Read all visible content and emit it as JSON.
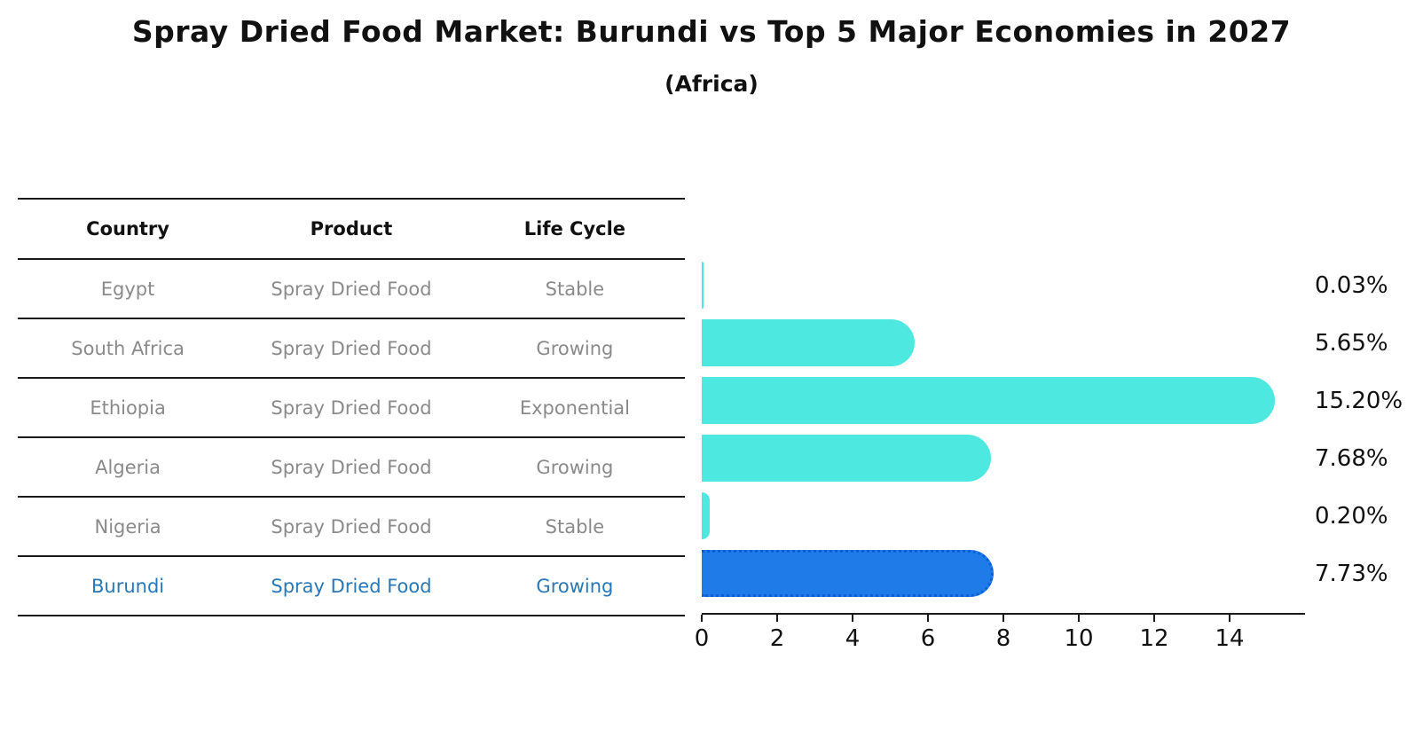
{
  "title": "Spray Dried Food Market: Burundi vs Top 5 Major Economies in 2027",
  "subtitle": "(Africa)",
  "table": {
    "headers": [
      "Country",
      "Product",
      "Life Cycle"
    ],
    "rows": [
      {
        "country": "Egypt",
        "product": "Spray Dried Food",
        "life_cycle": "Stable"
      },
      {
        "country": "South Africa",
        "product": "Spray Dried Food",
        "life_cycle": "Growing"
      },
      {
        "country": "Ethiopia",
        "product": "Spray Dried Food",
        "life_cycle": "Exponential"
      },
      {
        "country": "Algeria",
        "product": "Spray Dried Food",
        "life_cycle": "Growing"
      },
      {
        "country": "Nigeria",
        "product": "Spray Dried Food",
        "life_cycle": "Stable"
      },
      {
        "country": "Burundi",
        "product": "Spray Dried Food",
        "life_cycle": "Growing"
      }
    ]
  },
  "chart_data": {
    "type": "bar",
    "orientation": "horizontal",
    "categories": [
      "Egypt",
      "South Africa",
      "Ethiopia",
      "Algeria",
      "Nigeria",
      "Burundi"
    ],
    "values": [
      0.03,
      5.65,
      15.2,
      7.68,
      0.2,
      7.73
    ],
    "value_labels": [
      "0.03%",
      "5.65%",
      "15.20%",
      "7.68%",
      "0.20%",
      "7.73%"
    ],
    "xticks": [
      "0",
      "2",
      "4",
      "6",
      "8",
      "10",
      "12",
      "14"
    ],
    "xlim": [
      0,
      16
    ],
    "grid": false,
    "legend": false,
    "bar_color": "#4DE8E0",
    "highlight_color": "#1E7BE8",
    "highlight_index": 5,
    "highlight_text_color": "#2878b8",
    "title": "Spray Dried Food Market: Burundi vs Top 5 Major Economies in 2027",
    "xlabel": "",
    "ylabel": ""
  }
}
